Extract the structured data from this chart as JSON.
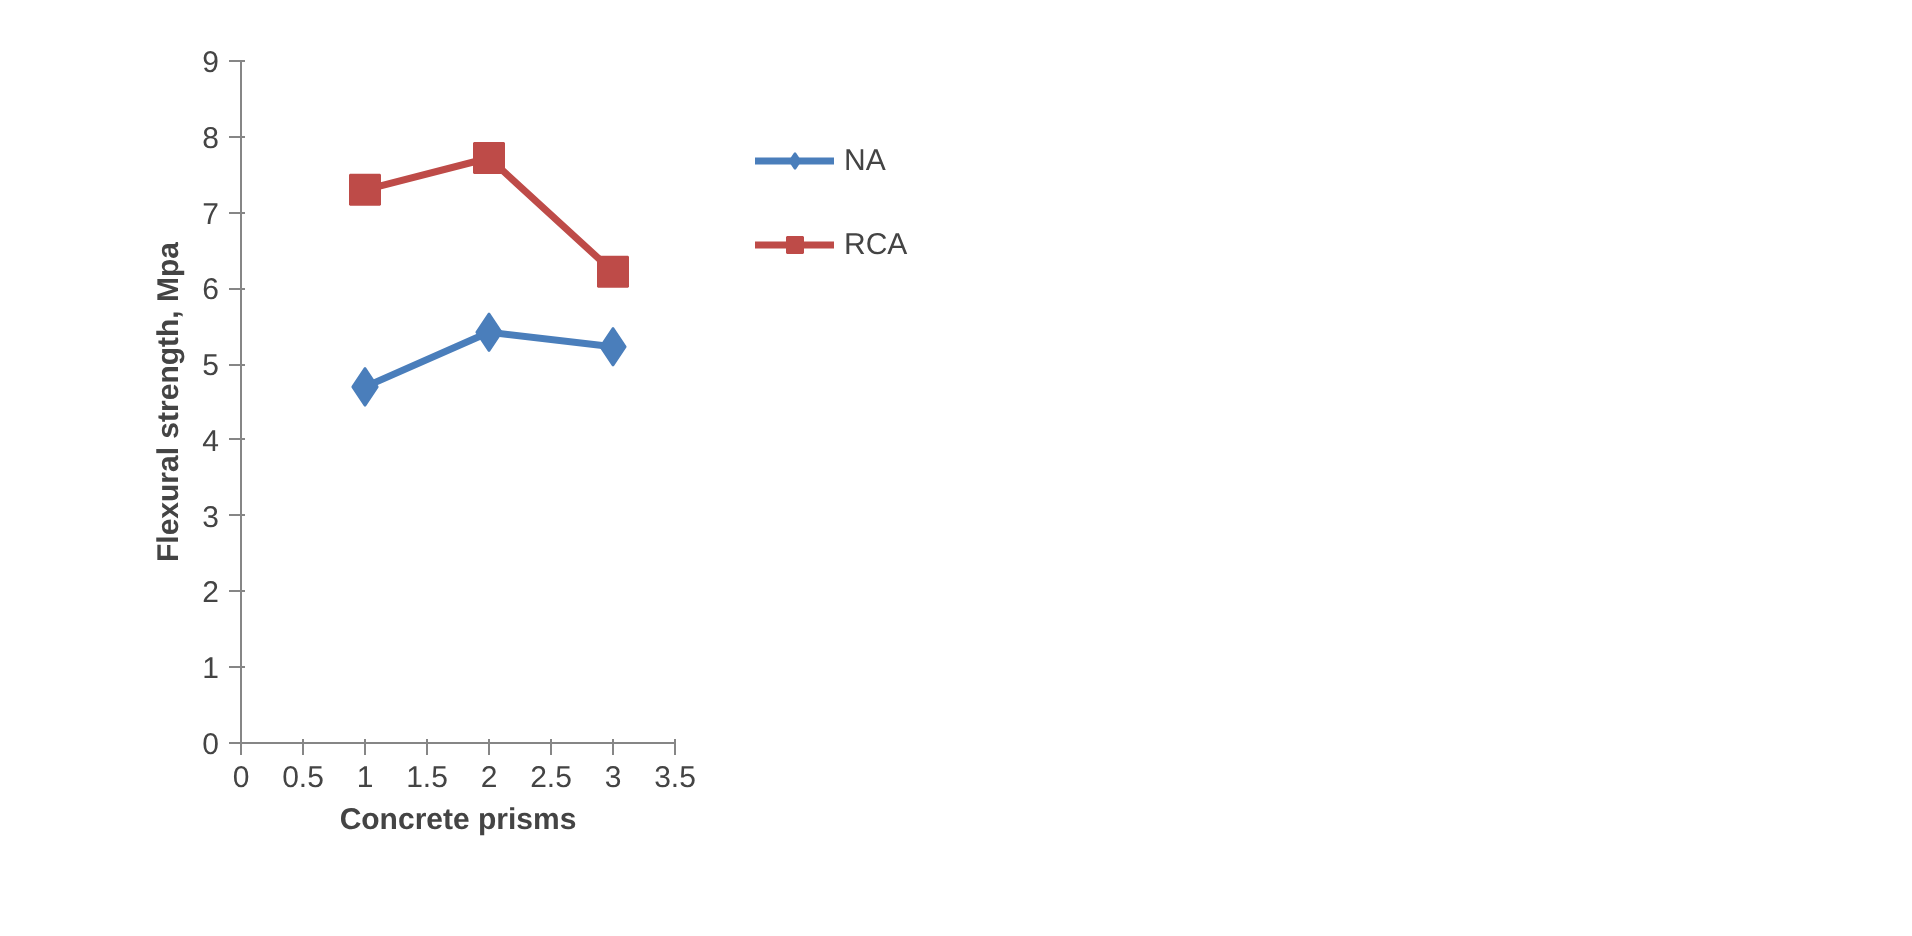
{
  "chart_data": {
    "type": "line",
    "xlabel": "Concrete prisms",
    "ylabel": "Flexural strength, Mpa",
    "x": [
      1,
      2,
      3
    ],
    "series": [
      {
        "name": "NA",
        "color": "#4a7ebb",
        "marker": "diamond",
        "values": [
          4.7,
          5.42,
          5.23
        ]
      },
      {
        "name": "RCA",
        "color": "#be4b48",
        "marker": "square",
        "values": [
          7.3,
          7.72,
          6.22
        ]
      }
    ],
    "xlim": [
      0,
      3.5
    ],
    "xticks": [
      0,
      0.5,
      1,
      1.5,
      2,
      2.5,
      3,
      3.5
    ],
    "ylim": [
      0,
      9
    ],
    "yticks": [
      0,
      1,
      2,
      3,
      4,
      5,
      6,
      7,
      8,
      9
    ],
    "grid": false,
    "legend": "right",
    "line_style": "solid"
  }
}
